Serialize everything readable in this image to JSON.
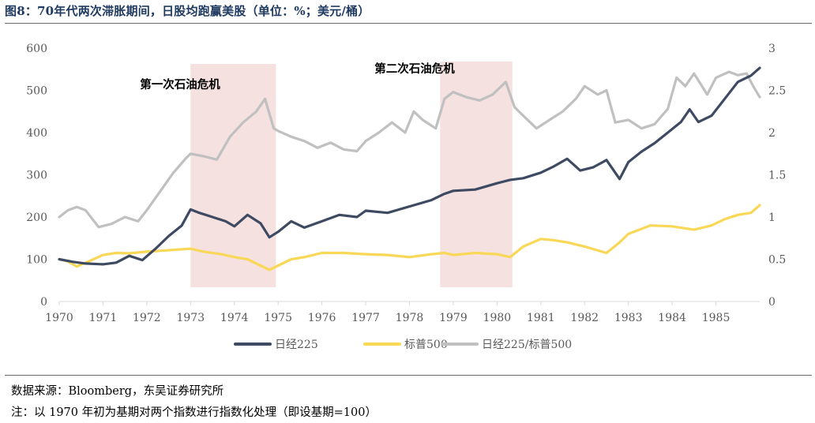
{
  "title": "图8：70年代两次滞胀期间，日股均跑赢美股（单位：%；美元/桶）",
  "source": "数据来源：Bloomberg，东吴证券研究所",
  "footnote": "注：以 1970 年初为基期对两个指数进行指数化处理（即设基期=100）",
  "colors": {
    "nikkei": "#3e4a61",
    "sp500": "#f9d757",
    "ratio": "#c0c0c0",
    "shade": "#f6e1e1",
    "axis": "#d9d9d9",
    "tick_text": "#595959",
    "title": "#1f3a60"
  },
  "chart_data": {
    "type": "line",
    "x_label_years": [
      "1970",
      "1971",
      "1972",
      "1973",
      "1974",
      "1975",
      "1976",
      "1977",
      "1978",
      "1979",
      "1980",
      "1981",
      "1982",
      "1983",
      "1984",
      "1985"
    ],
    "x_range": [
      1970,
      1986
    ],
    "y_left": {
      "range": [
        0,
        600
      ],
      "ticks": [
        "0",
        "100",
        "200",
        "300",
        "400",
        "500",
        "600"
      ]
    },
    "y_right": {
      "range": [
        0,
        3
      ],
      "ticks": [
        "0",
        "0.5",
        "1",
        "1.5",
        "2",
        "2.5",
        "3"
      ]
    },
    "shaded_periods": [
      {
        "label": "第一次石油危机",
        "start": 1973.0,
        "end": 1974.95
      },
      {
        "label": "第二次石油危机",
        "start": 1978.7,
        "end": 1980.35
      }
    ],
    "legend_position": "bottom",
    "series": [
      {
        "name": "日经225",
        "axis": "left",
        "color": "#3e4a61",
        "points": [
          [
            1970.0,
            100
          ],
          [
            1970.3,
            94
          ],
          [
            1970.6,
            90
          ],
          [
            1971.0,
            88
          ],
          [
            1971.3,
            92
          ],
          [
            1971.6,
            108
          ],
          [
            1971.9,
            98
          ],
          [
            1972.2,
            125
          ],
          [
            1972.5,
            155
          ],
          [
            1972.8,
            180
          ],
          [
            1973.0,
            218
          ],
          [
            1973.2,
            210
          ],
          [
            1973.5,
            200
          ],
          [
            1973.8,
            190
          ],
          [
            1974.0,
            178
          ],
          [
            1974.3,
            205
          ],
          [
            1974.6,
            185
          ],
          [
            1974.8,
            152
          ],
          [
            1975.0,
            165
          ],
          [
            1975.3,
            190
          ],
          [
            1975.6,
            175
          ],
          [
            1976.0,
            190
          ],
          [
            1976.4,
            205
          ],
          [
            1976.8,
            200
          ],
          [
            1977.0,
            215
          ],
          [
            1977.5,
            210
          ],
          [
            1978.0,
            225
          ],
          [
            1978.5,
            240
          ],
          [
            1978.8,
            255
          ],
          [
            1979.0,
            262
          ],
          [
            1979.5,
            265
          ],
          [
            1980.0,
            280
          ],
          [
            1980.3,
            288
          ],
          [
            1980.6,
            292
          ],
          [
            1981.0,
            305
          ],
          [
            1981.3,
            320
          ],
          [
            1981.6,
            338
          ],
          [
            1981.9,
            310
          ],
          [
            1982.2,
            318
          ],
          [
            1982.5,
            335
          ],
          [
            1982.8,
            290
          ],
          [
            1983.0,
            330
          ],
          [
            1983.3,
            355
          ],
          [
            1983.6,
            375
          ],
          [
            1983.9,
            400
          ],
          [
            1984.2,
            425
          ],
          [
            1984.4,
            455
          ],
          [
            1984.6,
            425
          ],
          [
            1984.9,
            440
          ],
          [
            1985.2,
            480
          ],
          [
            1985.5,
            520
          ],
          [
            1985.8,
            535
          ],
          [
            1986.0,
            553
          ]
        ]
      },
      {
        "name": "标普500",
        "axis": "left",
        "color": "#f9d757",
        "points": [
          [
            1970.0,
            100
          ],
          [
            1970.2,
            95
          ],
          [
            1970.4,
            83
          ],
          [
            1970.7,
            96
          ],
          [
            1971.0,
            110
          ],
          [
            1971.3,
            115
          ],
          [
            1971.6,
            114
          ],
          [
            1972.0,
            118
          ],
          [
            1972.3,
            120
          ],
          [
            1972.6,
            122
          ],
          [
            1973.0,
            125
          ],
          [
            1973.3,
            118
          ],
          [
            1973.7,
            112
          ],
          [
            1974.0,
            105
          ],
          [
            1974.3,
            100
          ],
          [
            1974.6,
            85
          ],
          [
            1974.8,
            75
          ],
          [
            1975.0,
            85
          ],
          [
            1975.3,
            100
          ],
          [
            1975.6,
            105
          ],
          [
            1976.0,
            115
          ],
          [
            1976.5,
            115
          ],
          [
            1977.0,
            112
          ],
          [
            1977.5,
            110
          ],
          [
            1978.0,
            105
          ],
          [
            1978.5,
            112
          ],
          [
            1978.8,
            115
          ],
          [
            1979.0,
            110
          ],
          [
            1979.5,
            115
          ],
          [
            1980.0,
            112
          ],
          [
            1980.3,
            105
          ],
          [
            1980.6,
            130
          ],
          [
            1981.0,
            148
          ],
          [
            1981.3,
            145
          ],
          [
            1981.6,
            140
          ],
          [
            1982.0,
            130
          ],
          [
            1982.5,
            115
          ],
          [
            1982.8,
            140
          ],
          [
            1983.0,
            160
          ],
          [
            1983.5,
            180
          ],
          [
            1984.0,
            178
          ],
          [
            1984.5,
            170
          ],
          [
            1984.9,
            180
          ],
          [
            1985.2,
            195
          ],
          [
            1985.5,
            205
          ],
          [
            1985.8,
            210
          ],
          [
            1986.0,
            228
          ]
        ]
      },
      {
        "name": "日经225/标普500",
        "axis": "right",
        "color": "#c0c0c0",
        "points": [
          [
            1970.0,
            1.0
          ],
          [
            1970.2,
            1.08
          ],
          [
            1970.4,
            1.12
          ],
          [
            1970.6,
            1.08
          ],
          [
            1970.9,
            0.88
          ],
          [
            1971.2,
            0.92
          ],
          [
            1971.5,
            1.0
          ],
          [
            1971.8,
            0.95
          ],
          [
            1972.0,
            1.08
          ],
          [
            1972.3,
            1.3
          ],
          [
            1972.6,
            1.52
          ],
          [
            1972.9,
            1.7
          ],
          [
            1973.0,
            1.75
          ],
          [
            1973.3,
            1.72
          ],
          [
            1973.6,
            1.68
          ],
          [
            1973.9,
            1.95
          ],
          [
            1974.2,
            2.12
          ],
          [
            1974.5,
            2.25
          ],
          [
            1974.7,
            2.4
          ],
          [
            1974.9,
            2.05
          ],
          [
            1975.0,
            2.02
          ],
          [
            1975.3,
            1.95
          ],
          [
            1975.6,
            1.9
          ],
          [
            1975.9,
            1.82
          ],
          [
            1976.2,
            1.88
          ],
          [
            1976.5,
            1.8
          ],
          [
            1976.8,
            1.78
          ],
          [
            1977.0,
            1.9
          ],
          [
            1977.3,
            2.0
          ],
          [
            1977.6,
            2.12
          ],
          [
            1977.9,
            2.0
          ],
          [
            1978.1,
            2.25
          ],
          [
            1978.3,
            2.15
          ],
          [
            1978.6,
            2.05
          ],
          [
            1978.8,
            2.4
          ],
          [
            1979.0,
            2.48
          ],
          [
            1979.3,
            2.42
          ],
          [
            1979.6,
            2.38
          ],
          [
            1979.9,
            2.45
          ],
          [
            1980.2,
            2.6
          ],
          [
            1980.4,
            2.3
          ],
          [
            1980.6,
            2.2
          ],
          [
            1980.9,
            2.05
          ],
          [
            1981.2,
            2.15
          ],
          [
            1981.5,
            2.25
          ],
          [
            1981.8,
            2.4
          ],
          [
            1982.0,
            2.55
          ],
          [
            1982.3,
            2.45
          ],
          [
            1982.5,
            2.5
          ],
          [
            1982.7,
            2.12
          ],
          [
            1983.0,
            2.15
          ],
          [
            1983.3,
            2.05
          ],
          [
            1983.6,
            2.1
          ],
          [
            1983.9,
            2.28
          ],
          [
            1984.1,
            2.65
          ],
          [
            1984.3,
            2.55
          ],
          [
            1984.5,
            2.7
          ],
          [
            1984.8,
            2.45
          ],
          [
            1985.0,
            2.65
          ],
          [
            1985.3,
            2.72
          ],
          [
            1985.5,
            2.68
          ],
          [
            1985.7,
            2.7
          ],
          [
            1985.85,
            2.55
          ],
          [
            1986.0,
            2.42
          ]
        ]
      }
    ]
  }
}
